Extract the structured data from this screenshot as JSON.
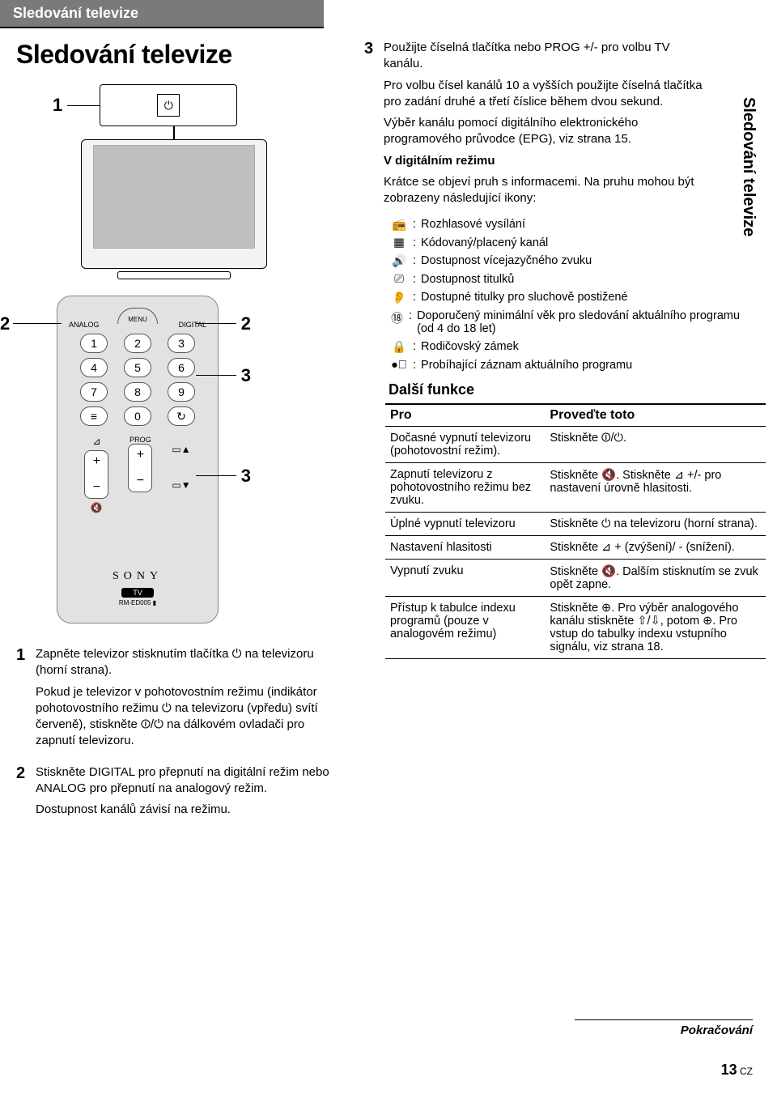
{
  "header_bar": "Sledování televize",
  "main_heading": "Sledování televize",
  "side_tab": "Sledování televize",
  "callout": {
    "c1": "1",
    "c2": "2",
    "c3": "3"
  },
  "remote": {
    "menu": "MENU",
    "analog": "ANALOG",
    "digital": "DIGITAL",
    "k1": "1",
    "k2": "2",
    "k3": "3",
    "k4": "4",
    "k5": "5",
    "k6": "6",
    "k7": "7",
    "k8": "8",
    "k9": "9",
    "k0": "0",
    "prog": "PROG",
    "brand": "SONY",
    "tv": "TV",
    "model": "RM-ED005 ▮"
  },
  "steps": {
    "s1": {
      "num": "1",
      "line1": "Zapněte televizor stisknutím tlačítka ⏻ na televizoru (horní strana).",
      "line2": "Pokud je televizor v pohotovostním režimu (indikátor pohotovostního režimu ⏻ na televizoru (vpředu) svítí červeně), stiskněte ⏼/⏻ na dálkovém ovladači pro zapnutí televizoru."
    },
    "s2": {
      "num": "2",
      "line1": "Stiskněte DIGITAL pro přepnutí na digitální režim nebo ANALOG pro přepnutí na analogový režim.",
      "line2": "Dostupnost kanálů závisí na režimu."
    }
  },
  "right": {
    "s3": {
      "num": "3",
      "line1": "Použijte číselná tlačítka nebo PROG +/- pro volbu TV kanálu.",
      "line2": "Pro volbu čísel kanálů 10 a vyšších použijte číselná tlačítka pro zadání druhé a třetí číslice během dvou sekund.",
      "line3": "Výběr kanálu pomocí digitálního elektronického programového průvodce (EPG), viz strana 15.",
      "boldline": "V digitálním režimu",
      "line4": "Krátce se objeví pruh s informacemi. Na pruhu mohou být zobrazeny následující ikony:"
    },
    "icons": [
      {
        "glyph": "📻",
        "text": "Rozhlasové vysílání"
      },
      {
        "glyph": "▦",
        "text": "Kódovaný/placený kanál"
      },
      {
        "glyph": "🔊",
        "text": "Dostupnost vícejazyčného zvuku"
      },
      {
        "glyph": "⎚",
        "text": "Dostupnost titulků"
      },
      {
        "glyph": "👂",
        "text": "Dostupné titulky pro sluchově postižené"
      },
      {
        "glyph": "⑱",
        "text": "Doporučený minimální věk pro sledování aktuálního programu (od 4 do 18 let)"
      },
      {
        "glyph": "🔒",
        "text": "Rodičovský zámek"
      },
      {
        "glyph": "●⃞",
        "text": "Probíhající záznam aktuálního programu"
      }
    ],
    "further_heading": "Další funkce",
    "table": {
      "head1": "Pro",
      "head2": "Proveďte toto",
      "rows": [
        {
          "a": "Dočasné vypnutí televizoru (pohotovostní režim).",
          "b": "Stiskněte ⏼/⏻."
        },
        {
          "a": "Zapnutí televizoru z pohotovostního režimu bez zvuku.",
          "b": "Stiskněte 🔇. Stiskněte ⊿ +/- pro nastavení úrovně hlasitosti."
        },
        {
          "a": "Úplné vypnutí televizoru",
          "b": "Stiskněte ⏻ na televizoru (horní strana)."
        },
        {
          "a": "Nastavení hlasitosti",
          "b": "Stiskněte ⊿ + (zvýšení)/ - (snížení)."
        },
        {
          "a": "Vypnutí zvuku",
          "b": "Stiskněte 🔇. Dalším stisknutím se zvuk opět zapne."
        },
        {
          "a": "Přístup k tabulce indexu programů (pouze v analogovém režimu)",
          "b": "Stiskněte ⊕. Pro výběr analogového kanálu stiskněte ⇧/⇩, potom ⊕. Pro vstup do tabulky indexu vstupního signálu, viz strana 18."
        }
      ]
    }
  },
  "footer": {
    "cont": "Pokračování",
    "page": "13",
    "suffix": " CZ"
  }
}
